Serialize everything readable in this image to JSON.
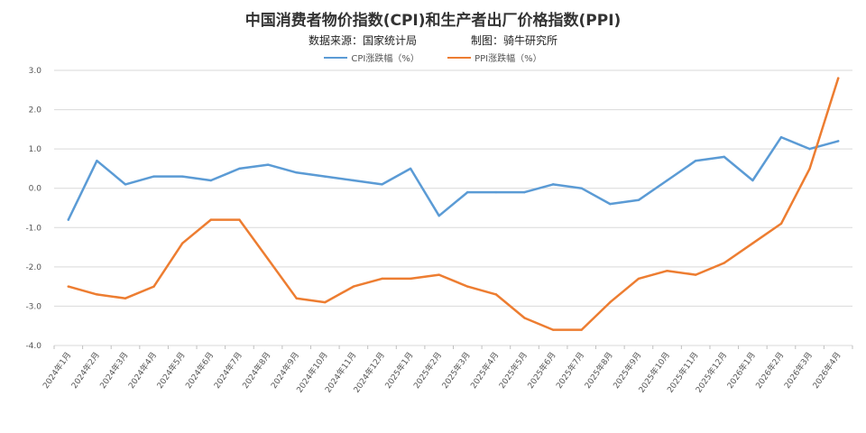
{
  "title": "中国消费者物价指数(CPI)和生产者出厂价格指数(PPI)",
  "source_label": "数据来源：国家统计局",
  "author_label": "制图：骑牛研究所",
  "colors": {
    "cpi": "#5b9bd5",
    "ppi": "#ed7d31",
    "grid": "#d9d9d9",
    "axis": "#bfbfbf"
  },
  "chart_data": {
    "type": "line",
    "title": "中国消费者物价指数(CPI)和生产者出厂价格指数(PPI)",
    "xlabel": "",
    "ylabel": "",
    "ylim": [
      -4.0,
      3.0
    ],
    "yticks": [
      "3.0",
      "2.0",
      "1.0",
      "0.0",
      "-1.0",
      "-2.0",
      "-3.0",
      "-4.0"
    ],
    "grid": true,
    "legend_position": "top",
    "categories": [
      "2024年1月",
      "2024年2月",
      "2024年3月",
      "2024年4月",
      "2024年5月",
      "2024年6月",
      "2024年7月",
      "2024年8月",
      "2024年9月",
      "2024年10月",
      "2024年11月",
      "2024年12月",
      "2025年1月",
      "2025年2月",
      "2025年3月",
      "2025年4月",
      "2025年5月",
      "2025年6月",
      "2025年7月",
      "2025年8月",
      "2025年9月",
      "2025年10月",
      "2025年11月",
      "2025年12月",
      "2026年1月",
      "2026年2月",
      "2026年3月",
      "2026年4月"
    ],
    "series": [
      {
        "name": "CPI涨跌幅（%）",
        "color": "#5b9bd5",
        "values": [
          -0.8,
          0.7,
          0.1,
          0.3,
          0.3,
          0.2,
          0.5,
          0.6,
          0.4,
          0.3,
          0.2,
          0.1,
          0.5,
          -0.7,
          -0.1,
          -0.1,
          -0.1,
          0.1,
          0.0,
          -0.4,
          -0.3,
          0.2,
          0.7,
          0.8,
          0.2,
          1.3,
          1.0,
          1.2
        ]
      },
      {
        "name": "PPI涨跌幅（%）",
        "color": "#ed7d31",
        "values": [
          -2.5,
          -2.7,
          -2.8,
          -2.5,
          -1.4,
          -0.8,
          -0.8,
          -1.8,
          -2.8,
          -2.9,
          -2.5,
          -2.3,
          -2.3,
          -2.2,
          -2.5,
          -2.7,
          -3.3,
          -3.6,
          -3.6,
          -2.9,
          -2.3,
          -2.1,
          -2.2,
          -1.9,
          -1.4,
          -0.9,
          0.5,
          2.8
        ]
      }
    ]
  }
}
